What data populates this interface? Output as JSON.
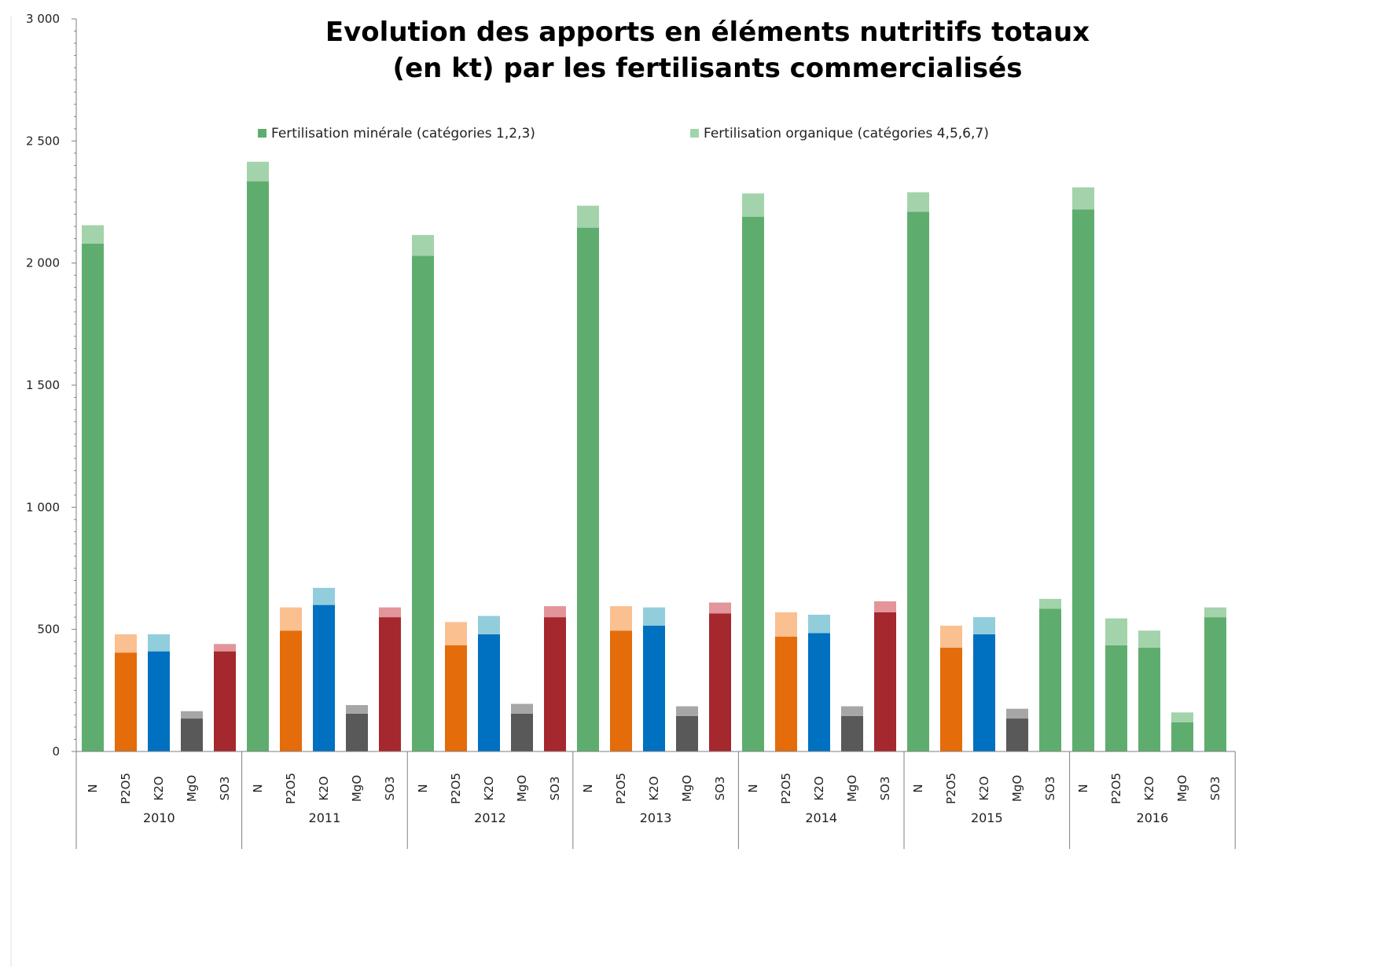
{
  "chart_data": {
    "type": "bar",
    "stacked": true,
    "title_line1": "Evolution des apports en éléments nutritifs totaux",
    "title_line2": "(en kt) par les fertilisants commercialisés",
    "legend": [
      {
        "label": "Fertilisation minérale (catégories 1,2,3)",
        "color": "#5fad6e"
      },
      {
        "label": "Fertilisation organique (catégories 4,5,6,7)",
        "color": "#a3d3ab"
      }
    ],
    "legend_placement": "top",
    "ylim": [
      0,
      3000
    ],
    "yticks": [
      0,
      500,
      1000,
      1500,
      2000,
      2500,
      3000
    ],
    "ytick_labels": [
      "0",
      "500",
      "1 000",
      "1 500",
      "2 000",
      "2 500",
      "3 000"
    ],
    "grid": false,
    "colors": {
      "N": {
        "mineral": "#5fad6e",
        "organic": "#a3d3ab"
      },
      "P2O5": {
        "mineral": "#e46c0a",
        "organic": "#fac090"
      },
      "K2O": {
        "mineral": "#0070c0",
        "organic": "#92cddc"
      },
      "MgO": {
        "mineral": "#595959",
        "organic": "#a6a6a6"
      },
      "SO3": {
        "mineral": "#a5282e",
        "organic": "#e39599"
      },
      "all_green": {
        "mineral": "#5fad6e",
        "organic": "#a3d3ab"
      }
    },
    "groups": [
      {
        "year": "2010",
        "bars": [
          {
            "nutrient": "N",
            "mineral": 2080,
            "organic": 75
          },
          {
            "nutrient": "P2O5",
            "mineral": 405,
            "organic": 75
          },
          {
            "nutrient": "K2O",
            "mineral": 410,
            "organic": 70
          },
          {
            "nutrient": "MgO",
            "mineral": 135,
            "organic": 30
          },
          {
            "nutrient": "SO3",
            "mineral": 410,
            "organic": 30
          }
        ]
      },
      {
        "year": "2011",
        "bars": [
          {
            "nutrient": "N",
            "mineral": 2335,
            "organic": 80
          },
          {
            "nutrient": "P2O5",
            "mineral": 495,
            "organic": 95
          },
          {
            "nutrient": "K2O",
            "mineral": 600,
            "organic": 70
          },
          {
            "nutrient": "MgO",
            "mineral": 155,
            "organic": 35
          },
          {
            "nutrient": "SO3",
            "mineral": 550,
            "organic": 40
          }
        ]
      },
      {
        "year": "2012",
        "bars": [
          {
            "nutrient": "N",
            "mineral": 2030,
            "organic": 85
          },
          {
            "nutrient": "P2O5",
            "mineral": 435,
            "organic": 95
          },
          {
            "nutrient": "K2O",
            "mineral": 480,
            "organic": 75
          },
          {
            "nutrient": "MgO",
            "mineral": 155,
            "organic": 40
          },
          {
            "nutrient": "SO3",
            "mineral": 550,
            "organic": 45
          }
        ]
      },
      {
        "year": "2013",
        "bars": [
          {
            "nutrient": "N",
            "mineral": 2145,
            "organic": 90
          },
          {
            "nutrient": "P2O5",
            "mineral": 495,
            "organic": 100
          },
          {
            "nutrient": "K2O",
            "mineral": 515,
            "organic": 75
          },
          {
            "nutrient": "MgO",
            "mineral": 145,
            "organic": 40
          },
          {
            "nutrient": "SO3",
            "mineral": 565,
            "organic": 45
          }
        ]
      },
      {
        "year": "2014",
        "bars": [
          {
            "nutrient": "N",
            "mineral": 2190,
            "organic": 95
          },
          {
            "nutrient": "P2O5",
            "mineral": 470,
            "organic": 100
          },
          {
            "nutrient": "K2O",
            "mineral": 485,
            "organic": 75
          },
          {
            "nutrient": "MgO",
            "mineral": 145,
            "organic": 40
          },
          {
            "nutrient": "SO3",
            "mineral": 570,
            "organic": 45
          }
        ]
      },
      {
        "year": "2015",
        "bars": [
          {
            "nutrient": "N",
            "mineral": 2210,
            "organic": 80
          },
          {
            "nutrient": "P2O5",
            "mineral": 425,
            "organic": 90
          },
          {
            "nutrient": "K2O",
            "mineral": 480,
            "organic": 70
          },
          {
            "nutrient": "MgO",
            "mineral": 135,
            "organic": 40
          },
          {
            "nutrient": "SO3",
            "mineral": 585,
            "organic": 40,
            "all_green": true
          }
        ]
      },
      {
        "year": "2016",
        "bars": [
          {
            "nutrient": "N",
            "mineral": 2220,
            "organic": 90,
            "all_green": true
          },
          {
            "nutrient": "P2O5",
            "mineral": 435,
            "organic": 110,
            "all_green": true
          },
          {
            "nutrient": "K2O",
            "mineral": 425,
            "organic": 70,
            "all_green": true
          },
          {
            "nutrient": "MgO",
            "mineral": 120,
            "organic": 40,
            "all_green": true
          },
          {
            "nutrient": "SO3",
            "mineral": 550,
            "organic": 40,
            "all_green": true
          }
        ]
      }
    ]
  }
}
